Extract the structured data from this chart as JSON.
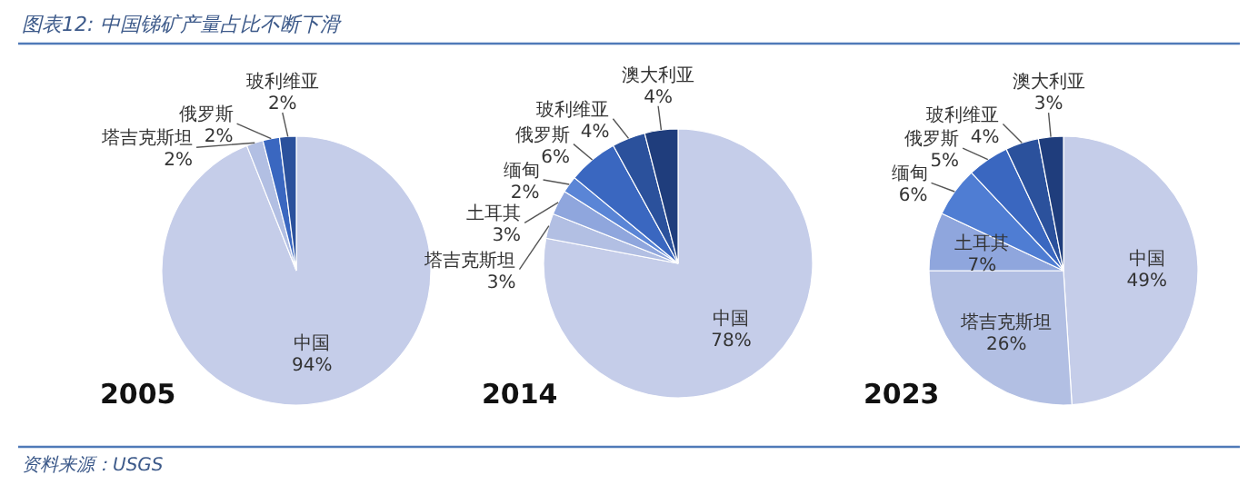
{
  "chart_data": [
    {
      "type": "pie",
      "title": "2005",
      "categories": [
        "中国",
        "塔吉克斯坦",
        "俄罗斯",
        "玻利维亚"
      ],
      "values": [
        94,
        2,
        2,
        2
      ],
      "colors": [
        "#c5cde9",
        "#b2bfe3",
        "#3a67c0",
        "#2b519c"
      ],
      "value_labels": [
        "94%",
        "2%",
        "2%",
        "2%"
      ],
      "annotations": [
        "图表12: 中国锑矿产量占比不断下滑",
        "资料来源：USGS"
      ]
    },
    {
      "type": "pie",
      "title": "2014",
      "categories": [
        "中国",
        "塔吉克斯坦",
        "土耳其",
        "缅甸",
        "俄罗斯",
        "玻利维亚",
        "澳大利亚"
      ],
      "values": [
        78,
        3,
        3,
        2,
        6,
        4,
        4
      ],
      "colors": [
        "#c5cde9",
        "#b2bfe3",
        "#8fa6dd",
        "#5a85d6",
        "#3a67c0",
        "#2b519c",
        "#1f3d7c"
      ],
      "value_labels": [
        "78%",
        "3%",
        "3%",
        "2%",
        "6%",
        "4%",
        "4%"
      ]
    },
    {
      "type": "pie",
      "title": "2023",
      "categories": [
        "中国",
        "塔吉克斯坦",
        "土耳其",
        "缅甸",
        "俄罗斯",
        "玻利维亚",
        "澳大利亚"
      ],
      "values": [
        49,
        26,
        7,
        6,
        5,
        4,
        3
      ],
      "colors": [
        "#c5cde9",
        "#b2bfe3",
        "#8fa6dd",
        "#4f7dd3",
        "#3a67c0",
        "#2b519c",
        "#1f3d7c"
      ],
      "value_labels": [
        "49%",
        "26%",
        "7%",
        "6%",
        "5%",
        "4%",
        "3%"
      ]
    }
  ]
}
